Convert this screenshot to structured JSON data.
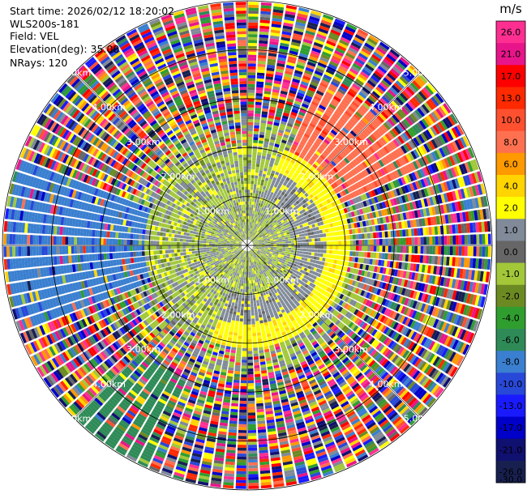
{
  "header": {
    "start_time": "Start time: 2026/02/12 18:20:02",
    "instrument": "WLS200s-181",
    "field": "Field: VEL",
    "elevation": "Elevation(deg): 35.00",
    "nrays": "NRays: 120"
  },
  "chart_data": {
    "type": "ppi",
    "field": "VEL",
    "elevation_deg": 35.0,
    "n_rays": 120,
    "max_range_km": 5.0,
    "range_rings_km": [
      1.0,
      2.0,
      3.0,
      4.0,
      5.0
    ],
    "ring_labels": [
      "1.00km",
      "2.00km",
      "3.00km",
      "4.00km",
      "5.00km"
    ],
    "colorbar": {
      "unit": "m/s",
      "ticks": [
        "26.0",
        "21.0",
        "17.0",
        "13.0",
        "10.0",
        "8.0",
        "6.0",
        "4.0",
        "2.0",
        "1.0",
        "0.0",
        "-1.0",
        "-2.0",
        "-4.0",
        "-6.0",
        "-8.0",
        "-10.0",
        "-13.0",
        "-17.0",
        "-21.0",
        "-26.0",
        "-30.0"
      ],
      "colors": [
        "#ff2f92",
        "#e8158a",
        "#ff0000",
        "#ff2a00",
        "#ff5030",
        "#ff7050",
        "#ff9900",
        "#ffd400",
        "#ffff00",
        "#808a98",
        "#666666",
        "#a2c83a",
        "#6c8a22",
        "#2f9e2f",
        "#2e8b57",
        "#3a7fd0",
        "#2848d8",
        "#1a1aff",
        "#0000c8",
        "#101070",
        "#182050"
      ]
    }
  }
}
